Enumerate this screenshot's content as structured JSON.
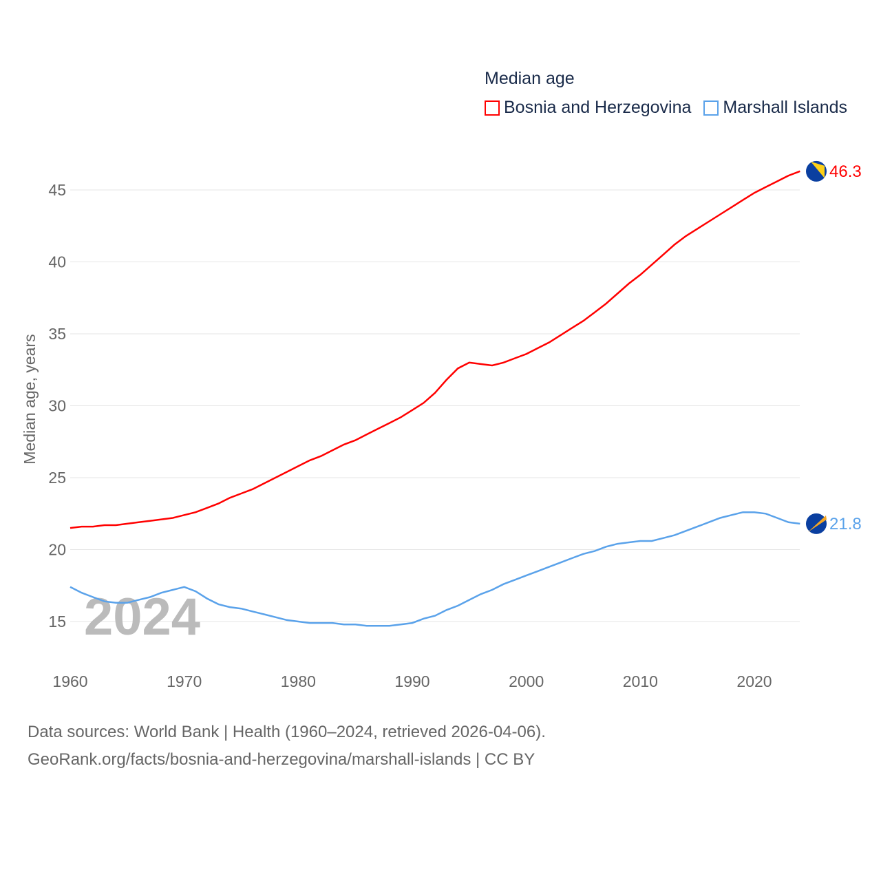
{
  "chart_data": {
    "type": "line",
    "legend_title": "Median age",
    "ylabel": "Median age, years",
    "xlabel": "",
    "xlim": [
      1960,
      2024
    ],
    "ylim": [
      12,
      47
    ],
    "xticks": [
      1960,
      1970,
      1980,
      1990,
      2000,
      2010,
      2020
    ],
    "yticks": [
      15,
      20,
      25,
      30,
      35,
      40,
      45
    ],
    "grid": true,
    "legend_position": "top-right",
    "watermark_year": "2024",
    "x": [
      1960,
      1961,
      1962,
      1963,
      1964,
      1965,
      1966,
      1967,
      1968,
      1969,
      1970,
      1971,
      1972,
      1973,
      1974,
      1975,
      1976,
      1977,
      1978,
      1979,
      1980,
      1981,
      1982,
      1983,
      1984,
      1985,
      1986,
      1987,
      1988,
      1989,
      1990,
      1991,
      1992,
      1993,
      1994,
      1995,
      1996,
      1997,
      1998,
      1999,
      2000,
      2001,
      2002,
      2003,
      2004,
      2005,
      2006,
      2007,
      2008,
      2009,
      2010,
      2011,
      2012,
      2013,
      2014,
      2015,
      2016,
      2017,
      2018,
      2019,
      2020,
      2021,
      2022,
      2023,
      2024
    ],
    "series": [
      {
        "name": "Bosnia and Herzegovina",
        "color": "#ff0000",
        "end_label": "46.3",
        "values": [
          21.5,
          21.6,
          21.6,
          21.7,
          21.7,
          21.8,
          21.9,
          22.0,
          22.1,
          22.2,
          22.4,
          22.6,
          22.9,
          23.2,
          23.6,
          23.9,
          24.2,
          24.6,
          25.0,
          25.4,
          25.8,
          26.2,
          26.5,
          26.9,
          27.3,
          27.6,
          28.0,
          28.4,
          28.8,
          29.2,
          29.7,
          30.2,
          30.9,
          31.8,
          32.6,
          33.0,
          32.9,
          32.8,
          33.0,
          33.3,
          33.6,
          34.0,
          34.4,
          34.9,
          35.4,
          35.9,
          36.5,
          37.1,
          37.8,
          38.5,
          39.1,
          39.8,
          40.5,
          41.2,
          41.8,
          42.3,
          42.8,
          43.3,
          43.8,
          44.3,
          44.8,
          45.2,
          45.6,
          46.0,
          46.3
        ]
      },
      {
        "name": "Marshall Islands",
        "color": "#5aa2ea",
        "end_label": "21.8",
        "values": [
          17.4,
          17.0,
          16.7,
          16.4,
          16.3,
          16.3,
          16.5,
          16.7,
          17.0,
          17.2,
          17.4,
          17.1,
          16.6,
          16.2,
          16.0,
          15.9,
          15.7,
          15.5,
          15.3,
          15.1,
          15.0,
          14.9,
          14.9,
          14.9,
          14.8,
          14.8,
          14.7,
          14.7,
          14.7,
          14.8,
          14.9,
          15.2,
          15.4,
          15.8,
          16.1,
          16.5,
          16.9,
          17.2,
          17.6,
          17.9,
          18.2,
          18.5,
          18.8,
          19.1,
          19.4,
          19.7,
          19.9,
          20.2,
          20.4,
          20.5,
          20.6,
          20.6,
          20.8,
          21.0,
          21.3,
          21.6,
          21.9,
          22.2,
          22.4,
          22.6,
          22.6,
          22.5,
          22.2,
          21.9,
          21.8
        ]
      }
    ]
  },
  "footer": {
    "line1": "Data sources: World Bank | Health (1960–2024, retrieved 2026-04-06).",
    "line2": "GeoRank.org/facts/bosnia-and-herzegovina/marshall-islands | CC BY"
  }
}
